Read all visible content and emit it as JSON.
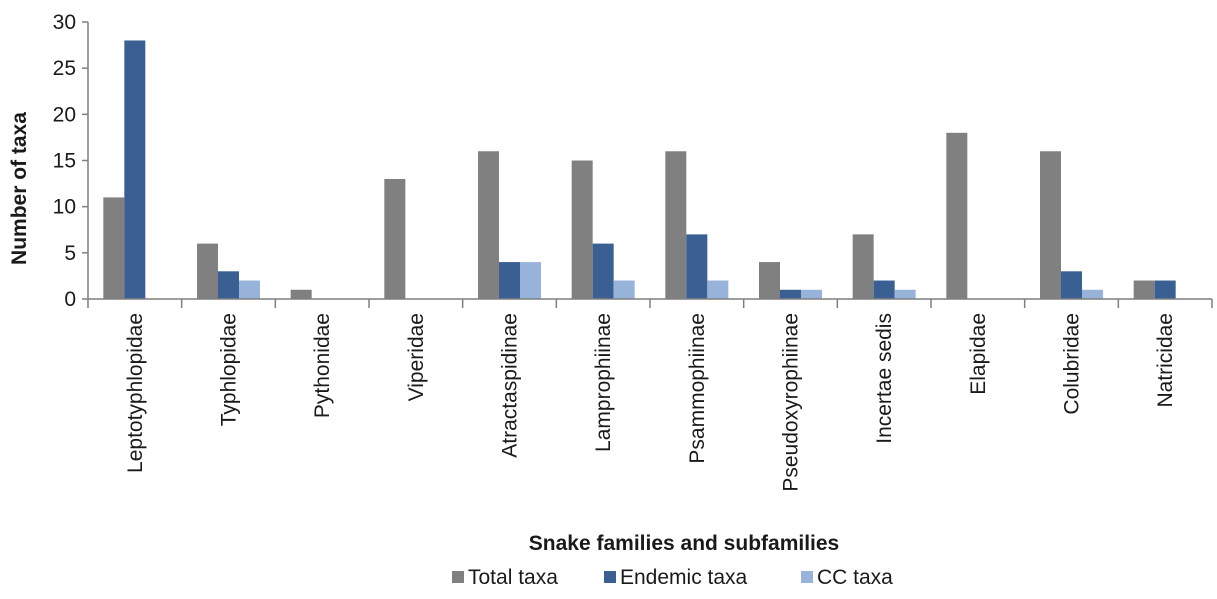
{
  "chart_data": {
    "type": "bar",
    "title": "",
    "xlabel": "Snake families and subfamilies",
    "ylabel": "Number of taxa",
    "ylim": [
      0,
      30
    ],
    "yticks": [
      0,
      5,
      10,
      15,
      20,
      25,
      30
    ],
    "grid": false,
    "legend_position": "bottom",
    "categories": [
      "Leptotyphlopidae",
      "Typhlopidae",
      "Pythonidae",
      "Viperidae",
      "Atractaspidinae",
      "Lamprophiinae",
      "Psammophiinae",
      "Pseudoxyrophiinae",
      "Incertae sedis",
      "Elapidae",
      "Colubridae",
      "Natricidae"
    ],
    "series": [
      {
        "name": "Total taxa",
        "color": "#808080",
        "values": [
          11,
          6,
          1,
          13,
          16,
          15,
          16,
          4,
          7,
          18,
          16,
          2
        ]
      },
      {
        "name": "Endemic taxa",
        "color": "#3a5f93",
        "values": [
          28,
          3,
          0,
          0,
          4,
          6,
          7,
          1,
          2,
          0,
          3,
          2
        ]
      },
      {
        "name": "CC taxa",
        "color": "#98b3d9",
        "values": [
          0,
          2,
          0,
          0,
          4,
          2,
          2,
          1,
          1,
          0,
          1,
          0
        ]
      }
    ]
  }
}
